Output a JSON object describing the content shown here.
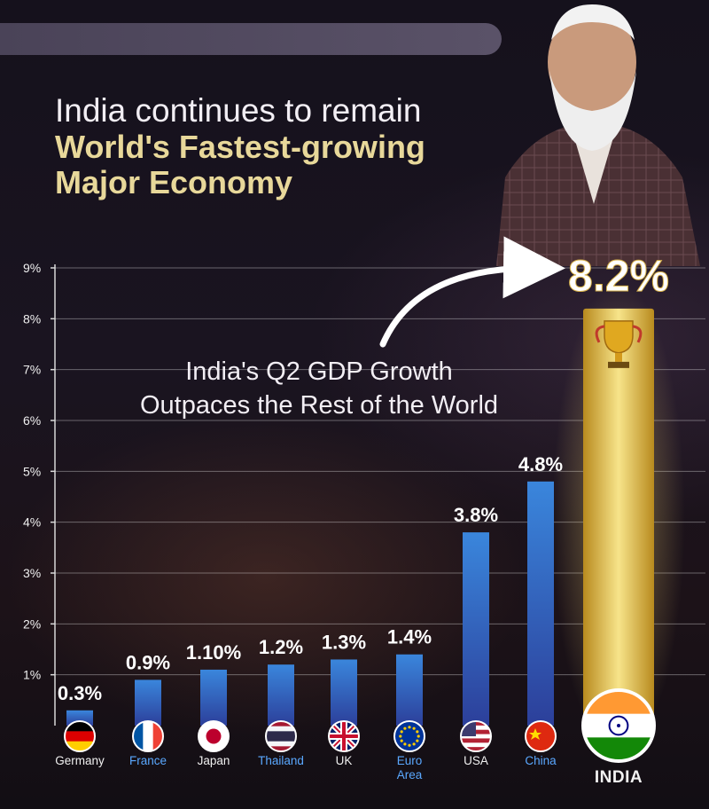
{
  "headline": {
    "line1": "India continues to remain",
    "line2": "World's Fastest-growing",
    "line3": "Major Economy"
  },
  "annotation": {
    "line1": "India's Q2 GDP Growth",
    "line2": "Outpaces the Rest of the World"
  },
  "colors": {
    "bar_blue_top": "#3a86dc",
    "bar_blue_bottom": "#2c3f9a",
    "bar_gold_top": "#f3d76a",
    "bar_gold_bottom": "#b88a1e",
    "headline_gold": "#e8d89a"
  },
  "chart_data": {
    "type": "bar",
    "title": "India's Q2 GDP Growth Outpaces the Rest of the World",
    "xlabel": "",
    "ylabel": "",
    "ylim": [
      0,
      9
    ],
    "yticks": [
      "1%",
      "2%",
      "3%",
      "4%",
      "5%",
      "6%",
      "7%",
      "8%",
      "9%"
    ],
    "grid": true,
    "categories": [
      "Germany",
      "France",
      "Japan",
      "Thailand",
      "UK",
      "Euro Area",
      "USA",
      "China",
      "INDIA"
    ],
    "values": [
      0.3,
      0.9,
      1.1,
      1.2,
      1.3,
      1.4,
      3.8,
      4.8,
      8.2
    ],
    "value_labels": [
      "0.3%",
      "0.9%",
      "1.10%",
      "1.2%",
      "1.3%",
      "1.4%",
      "3.8%",
      "4.8%",
      "8.2%"
    ],
    "highlight": "INDIA"
  }
}
